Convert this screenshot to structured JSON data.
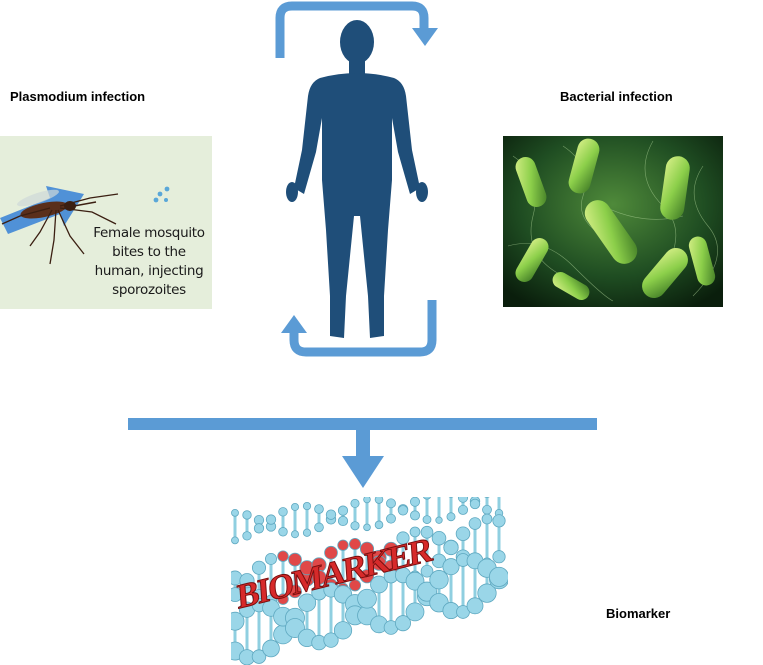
{
  "labels": {
    "plasmodium": "Plasmodium infection",
    "bacterial": "Bacterial infection",
    "biomarker": "Biomarker"
  },
  "plasmodium_panel": {
    "caption_lines": [
      "Female mosquito",
      "bites to the",
      "human, injecting",
      "sporozoites"
    ]
  },
  "biomarker_panel": {
    "image_word": "BIOMARKER"
  },
  "colors": {
    "arrow": "#5b9bd5",
    "arrow_stroke": "#4a86c0",
    "human": "#1f4e79",
    "bacteria_glow": "#8ccf4a",
    "dna": "#8fcfe0",
    "biomarker_red": "#d72a2a"
  },
  "icons": {
    "human": "human-silhouette-icon",
    "mosquito": "mosquito-icon",
    "bacteria": "bacteria-cluster-icon",
    "dna": "dna-helix-icon"
  }
}
